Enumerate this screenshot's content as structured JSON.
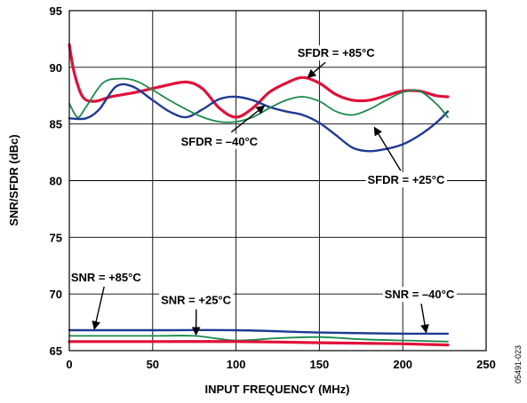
{
  "chart_data": {
    "type": "line",
    "xlabel": "INPUT FREQUENCY (MHz)",
    "ylabel": "SNR/SFDR (dBc)",
    "xlim": [
      0,
      250
    ],
    "ylim": [
      65,
      95
    ],
    "xticks": [
      "0",
      "50",
      "100",
      "150",
      "200",
      "250"
    ],
    "yticks": [
      "65",
      "70",
      "75",
      "80",
      "85",
      "90",
      "95"
    ],
    "grid": true,
    "figure_id": "05491-023",
    "colors": {
      "blue": "#1f3a93",
      "green": "#1a8a4a",
      "red": "#e0103a"
    },
    "series": [
      {
        "color": "red",
        "x": [
          0,
          3,
          8,
          15,
          25,
          40,
          55,
          70,
          80,
          90,
          100,
          110,
          120,
          130,
          140,
          150,
          160,
          170,
          180,
          190,
          200,
          210,
          220,
          227
        ],
        "y": [
          92.0,
          89.5,
          87.4,
          87.0,
          87.4,
          87.8,
          88.3,
          88.7,
          88.1,
          86.4,
          85.6,
          86.4,
          87.8,
          88.6,
          89.1,
          88.6,
          87.6,
          87.1,
          87.1,
          87.5,
          87.9,
          87.9,
          87.5,
          87.4
        ]
      },
      {
        "color": "blue",
        "x": [
          0,
          10,
          18,
          28,
          38,
          50,
          60,
          70,
          80,
          90,
          100,
          110,
          120,
          130,
          140,
          150,
          160,
          170,
          180,
          190,
          200,
          210,
          220,
          227
        ],
        "y": [
          85.5,
          85.5,
          86.3,
          88.3,
          88.3,
          87.1,
          86.1,
          85.6,
          86.3,
          87.2,
          87.4,
          87.1,
          86.5,
          86.1,
          85.8,
          85.1,
          84.0,
          82.9,
          82.6,
          82.8,
          83.2,
          84.0,
          85.1,
          86.1
        ]
      },
      {
        "color": "green",
        "x": [
          0,
          5,
          10,
          20,
          30,
          40,
          50,
          60,
          70,
          80,
          90,
          100,
          110,
          120,
          130,
          140,
          150,
          160,
          170,
          180,
          190,
          200,
          210,
          220,
          227
        ],
        "y": [
          86.8,
          85.6,
          86.5,
          88.6,
          89.0,
          88.8,
          88.0,
          87.1,
          86.3,
          85.6,
          85.2,
          85.2,
          85.6,
          86.4,
          87.1,
          87.4,
          87.0,
          86.1,
          85.8,
          86.3,
          87.1,
          87.8,
          87.9,
          86.8,
          85.6
        ]
      },
      {
        "color": "blue",
        "x": [
          0,
          50,
          100,
          150,
          200,
          227
        ],
        "y": [
          66.8,
          66.8,
          66.8,
          66.6,
          66.5,
          66.5
        ]
      },
      {
        "color": "green",
        "x": [
          0,
          50,
          75,
          100,
          125,
          150,
          175,
          200,
          227
        ],
        "y": [
          66.3,
          66.3,
          66.3,
          65.9,
          66.1,
          66.2,
          66.0,
          65.9,
          65.8
        ]
      },
      {
        "color": "red",
        "x": [
          0,
          50,
          100,
          150,
          200,
          227
        ],
        "y": [
          65.8,
          65.8,
          65.8,
          65.7,
          65.6,
          65.5
        ]
      }
    ],
    "annotations": [
      {
        "text": "SFDR = +85°C",
        "at": [
          160,
          91.3
        ],
        "to": [
          143,
          89.1
        ],
        "box": true
      },
      {
        "text": "SFDR = –40°C",
        "at": [
          90,
          83.5
        ],
        "to": [
          117,
          86.6
        ],
        "box": true
      },
      {
        "text": "SFDR = +25°C",
        "at": [
          202,
          80.1
        ],
        "to": [
          183,
          84.7
        ],
        "box": true
      },
      {
        "text": "SNR = +85°C",
        "at": [
          22,
          71.5
        ],
        "to": [
          15,
          66.9
        ],
        "box": false
      },
      {
        "text": "SNR = +25°C",
        "at": [
          76,
          69.5
        ],
        "to": [
          76,
          66.4
        ],
        "box": true
      },
      {
        "text": "SNR = –40°C",
        "at": [
          210,
          70.0
        ],
        "to": [
          214,
          66.6
        ],
        "box": true
      }
    ]
  }
}
